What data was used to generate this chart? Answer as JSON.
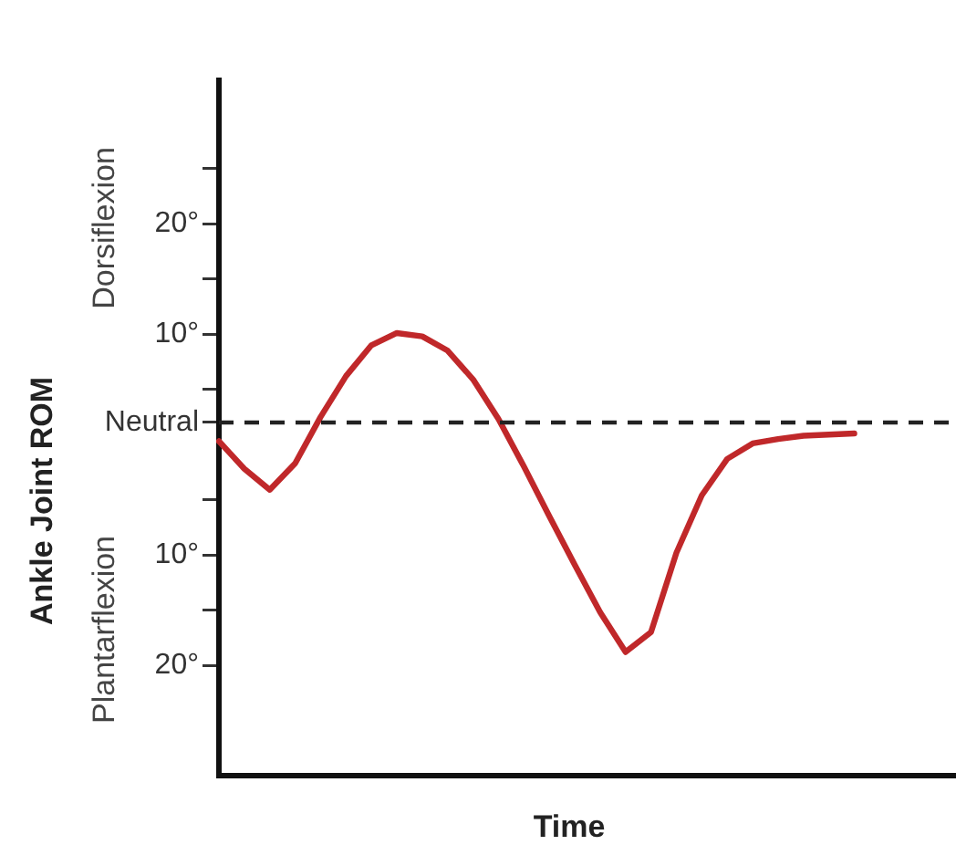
{
  "chart_data": {
    "type": "line",
    "xlabel": "Time",
    "ylabel": "Ankle Joint ROM",
    "annotations": [
      "Dorsiflexion",
      "Plantarflexion"
    ],
    "categories": [
      null,
      null,
      null,
      null,
      null,
      null,
      null,
      null,
      null,
      null,
      null,
      null,
      null,
      null,
      null,
      null,
      null,
      null,
      null,
      null,
      null,
      null,
      null,
      null,
      null,
      null,
      null,
      null,
      null,
      null
    ],
    "series": [
      {
        "color": "#c0282a",
        "values": [
          0.3,
          -2.2,
          -4.1,
          -1.7,
          2.5,
          6.2,
          9.0,
          10.1,
          9.8,
          8.5,
          5.9,
          2.3,
          -2.0,
          -6.5,
          -10.9,
          -15.2,
          -18.8,
          -17,
          -9.8,
          -4.6,
          -1.3,
          0.1,
          0.5,
          0.8,
          0.9,
          1.0,
          null,
          null,
          null,
          null
        ]
      }
    ],
    "ylim": [
      -30,
      33
    ],
    "yticks": [
      {
        "value": 25,
        "label": null
      },
      {
        "value": 20,
        "label": "20°"
      },
      {
        "value": 15,
        "label": null
      },
      {
        "value": 10,
        "label": "10°"
      },
      {
        "value": 5,
        "label": null
      },
      {
        "value": 2,
        "label": "Neutral"
      },
      {
        "value": -5,
        "label": null
      },
      {
        "value": -10,
        "label": "10°"
      },
      {
        "value": -15,
        "label": null
      },
      {
        "value": -20,
        "label": "20°"
      }
    ],
    "ref_lines": [
      {
        "axis": "y",
        "value": 2,
        "color": "#222222",
        "line_style": "dashed"
      }
    ],
    "tick_labels": "y",
    "grid": false,
    "legend": false,
    "marker": "none",
    "line_style": "solid"
  }
}
